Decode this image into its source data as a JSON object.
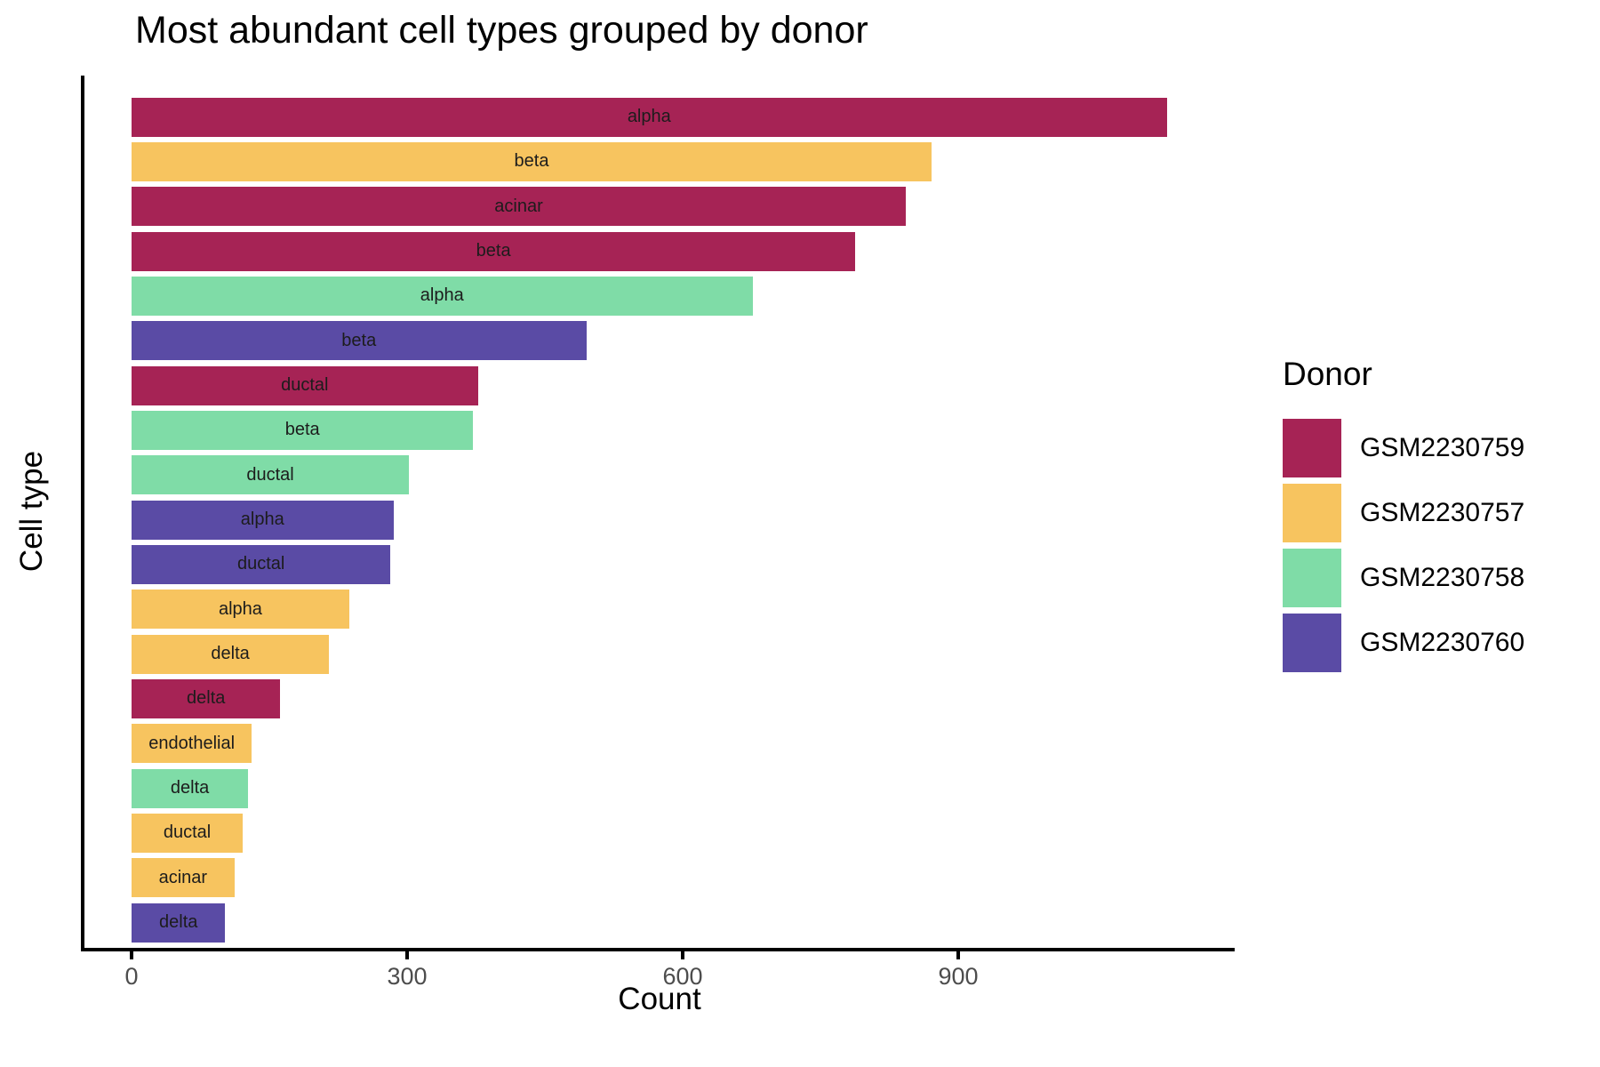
{
  "chart_data": {
    "type": "bar",
    "orientation": "horizontal",
    "title": "Most abundant cell types grouped by donor",
    "xlabel": "Count",
    "ylabel": "Cell type",
    "xlim": [
      0,
      1190
    ],
    "xticks": [
      0,
      300,
      600,
      900
    ],
    "grid": false,
    "bar_label_position": "center",
    "bars": [
      {
        "label": "alpha",
        "donor": "GSM2230759",
        "count": 1127
      },
      {
        "label": "beta",
        "donor": "GSM2230757",
        "count": 871
      },
      {
        "label": "acinar",
        "donor": "GSM2230759",
        "count": 843
      },
      {
        "label": "beta",
        "donor": "GSM2230759",
        "count": 788
      },
      {
        "label": "alpha",
        "donor": "GSM2230758",
        "count": 676
      },
      {
        "label": "beta",
        "donor": "GSM2230760",
        "count": 495
      },
      {
        "label": "ductal",
        "donor": "GSM2230759",
        "count": 377
      },
      {
        "label": "beta",
        "donor": "GSM2230758",
        "count": 372
      },
      {
        "label": "ductal",
        "donor": "GSM2230758",
        "count": 302
      },
      {
        "label": "alpha",
        "donor": "GSM2230760",
        "count": 285
      },
      {
        "label": "ductal",
        "donor": "GSM2230760",
        "count": 282
      },
      {
        "label": "alpha",
        "donor": "GSM2230757",
        "count": 237
      },
      {
        "label": "delta",
        "donor": "GSM2230757",
        "count": 215
      },
      {
        "label": "delta",
        "donor": "GSM2230759",
        "count": 162
      },
      {
        "label": "endothelial",
        "donor": "GSM2230757",
        "count": 131
      },
      {
        "label": "delta",
        "donor": "GSM2230758",
        "count": 127
      },
      {
        "label": "ductal",
        "donor": "GSM2230757",
        "count": 121
      },
      {
        "label": "acinar",
        "donor": "GSM2230757",
        "count": 112
      },
      {
        "label": "delta",
        "donor": "GSM2230760",
        "count": 102
      }
    ],
    "donor_colors": {
      "GSM2230759": "#A62355",
      "GSM2230757": "#F7C45F",
      "GSM2230758": "#7FDCA7",
      "GSM2230760": "#5A4BA5"
    },
    "legend": {
      "title": "Donor",
      "position": "right",
      "entries": [
        "GSM2230759",
        "GSM2230757",
        "GSM2230758",
        "GSM2230760"
      ]
    }
  }
}
